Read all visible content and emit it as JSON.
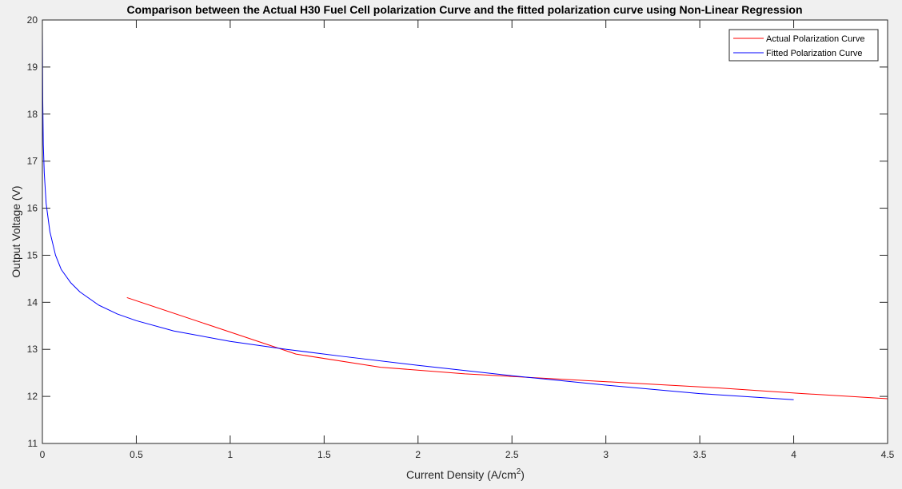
{
  "chart_data": {
    "type": "line",
    "title": "Comparison between the Actual H30 Fuel Cell polarization Curve and the fitted polarization curve using Non-Linear Regression",
    "xlabel": "Current Density (A/cm",
    "xlabel_sup": "2",
    "xlabel_end": ")",
    "ylabel": "Output Voltage (V)",
    "xlim": [
      0,
      4.5
    ],
    "ylim": [
      11,
      20
    ],
    "xticks": [
      0,
      0.5,
      1,
      1.5,
      2,
      2.5,
      3,
      3.5,
      4,
      4.5
    ],
    "xtick_labels": [
      "0",
      "0.5",
      "1",
      "1.5",
      "2",
      "2.5",
      "3",
      "3.5",
      "4",
      "4.5"
    ],
    "yticks": [
      11,
      12,
      13,
      14,
      15,
      16,
      17,
      18,
      19,
      20
    ],
    "ytick_labels": [
      "11",
      "12",
      "13",
      "14",
      "15",
      "16",
      "17",
      "18",
      "19",
      "20"
    ],
    "grid": false,
    "legend_position": "top-right",
    "series": [
      {
        "name": "Actual Polarization Curve",
        "color": "#ff0000",
        "x": [
          0.45,
          0.9,
          1.35,
          1.8,
          2.25,
          2.7,
          3.15,
          3.6,
          4.05,
          4.5
        ],
        "y": [
          14.1,
          13.5,
          12.9,
          12.62,
          12.48,
          12.38,
          12.28,
          12.18,
          12.06,
          11.95
        ]
      },
      {
        "name": "Fitted Polarization Curve",
        "color": "#0000ff",
        "x": [
          0,
          0.002,
          0.005,
          0.01,
          0.02,
          0.04,
          0.07,
          0.1,
          0.15,
          0.2,
          0.3,
          0.4,
          0.5,
          0.7,
          1.0,
          1.3,
          1.6,
          2.0,
          2.5,
          3.0,
          3.5,
          4.0
        ],
        "y": [
          19.8,
          18.3,
          17.35,
          16.75,
          16.1,
          15.5,
          15.0,
          14.7,
          14.42,
          14.22,
          13.94,
          13.75,
          13.61,
          13.39,
          13.17,
          13.0,
          12.85,
          12.66,
          12.44,
          12.24,
          12.06,
          11.93
        ]
      }
    ]
  }
}
